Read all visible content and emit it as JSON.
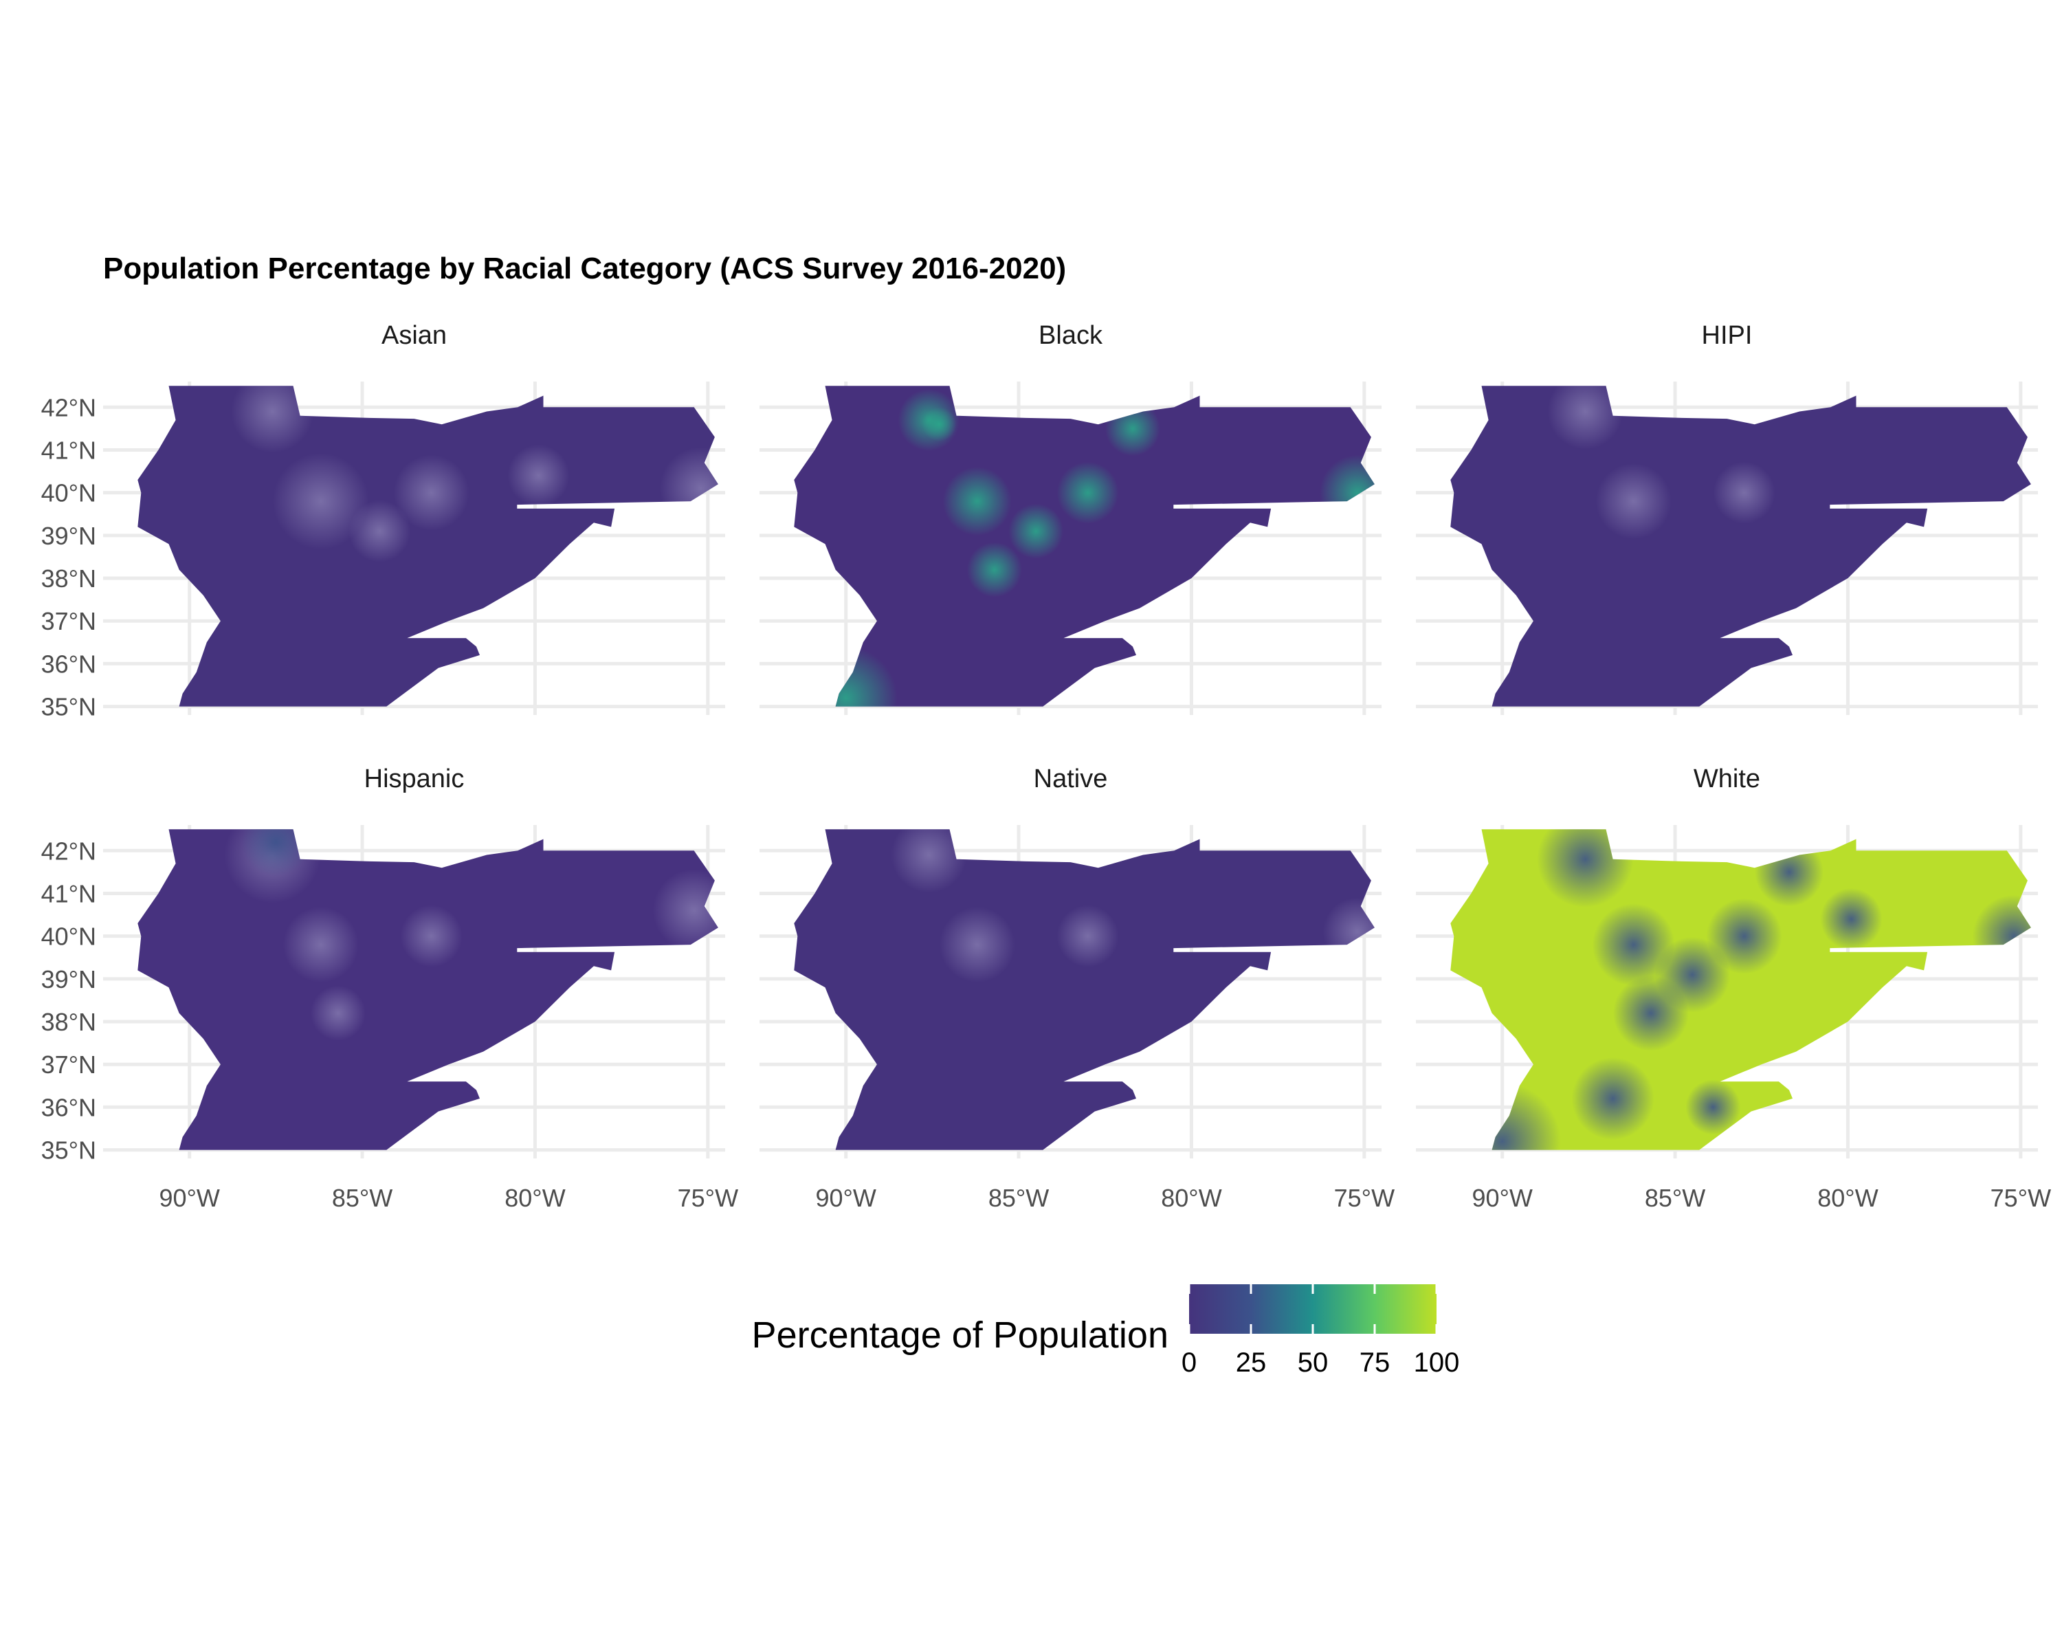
{
  "chart_data": {
    "type": "choropleth-map",
    "title": "Population Percentage by Racial Category (ACS Survey 2016-2020)",
    "lon_range": [
      -92.5,
      -74.5
    ],
    "lat_range": [
      34.8,
      42.6
    ],
    "x_ticks": [
      {
        "value": -90,
        "label": "90°W"
      },
      {
        "value": -85,
        "label": "85°W"
      },
      {
        "value": -80,
        "label": "80°W"
      },
      {
        "value": -75,
        "label": "75°W"
      }
    ],
    "y_ticks": [
      {
        "value": 35,
        "label": "35°N"
      },
      {
        "value": 36,
        "label": "36°N"
      },
      {
        "value": 37,
        "label": "37°N"
      },
      {
        "value": 38,
        "label": "38°N"
      },
      {
        "value": 39,
        "label": "39°N"
      },
      {
        "value": 40,
        "label": "40°N"
      },
      {
        "value": 41,
        "label": "41°N"
      },
      {
        "value": 42,
        "label": "42°N"
      }
    ],
    "grid": true,
    "facet_layout": {
      "rows": 2,
      "cols": 3
    },
    "panels": [
      {
        "label": "Asian",
        "base_value": 2,
        "base_color": "#45337d"
      },
      {
        "label": "Black",
        "base_value": 5,
        "base_color": "#46307c"
      },
      {
        "label": "HIPI",
        "base_value": 0,
        "base_color": "#45337d"
      },
      {
        "label": "Hispanic",
        "base_value": 3,
        "base_color": "#47327f"
      },
      {
        "label": "Native",
        "base_value": 0,
        "base_color": "#45337d"
      },
      {
        "label": "White",
        "base_value": 90,
        "base_color": "#b9de2b"
      }
    ],
    "legend": {
      "title": "Percentage of Population",
      "placement": "bottom",
      "range": [
        0,
        100
      ],
      "ticks": [
        "0",
        "25",
        "50",
        "75",
        "100"
      ],
      "colors": [
        "#440154",
        "#3b528b",
        "#21918c",
        "#5ec962",
        "#bddf26"
      ]
    }
  }
}
